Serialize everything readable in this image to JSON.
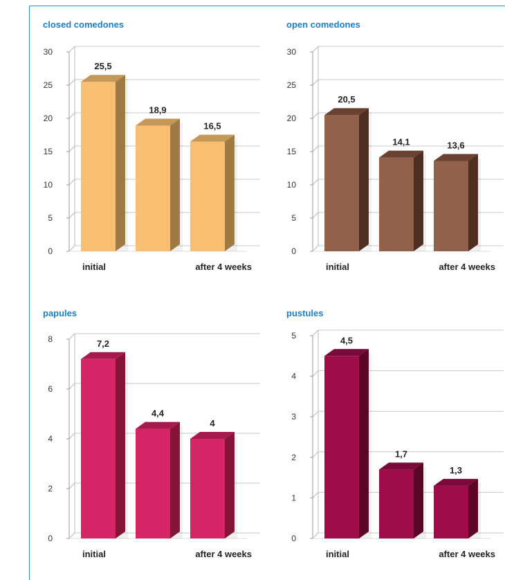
{
  "chart_data": [
    {
      "type": "bar",
      "title": "closed comedones",
      "categories": [
        "initial",
        "",
        "after 4 weeks"
      ],
      "values": [
        25.5,
        18.9,
        16.5
      ],
      "value_labels": [
        "25,5",
        "18,9",
        "16,5"
      ],
      "yticks": [
        "0",
        "5",
        "10",
        "15",
        "20",
        "25",
        "30"
      ],
      "ylim": [
        0,
        30
      ],
      "grid": true,
      "colors": {
        "front": "#f8bf73",
        "side": "#a07a44",
        "top": "#c49858"
      }
    },
    {
      "type": "bar",
      "title": "open comedones",
      "categories": [
        "initial",
        "",
        "after 4 weeks"
      ],
      "values": [
        20.5,
        14.1,
        13.6
      ],
      "value_labels": [
        "20,5",
        "14,1",
        "13,6"
      ],
      "yticks": [
        "0",
        "5",
        "10",
        "15",
        "20",
        "25",
        "30"
      ],
      "ylim": [
        0,
        30
      ],
      "grid": true,
      "colors": {
        "front": "#93614b",
        "side": "#4f2f22",
        "top": "#6a4232"
      }
    },
    {
      "type": "bar",
      "title": "papules",
      "categories": [
        "initial",
        "",
        "after 4 weeks"
      ],
      "values": [
        7.2,
        4.4,
        4
      ],
      "value_labels": [
        "7,2",
        "4,4",
        "4"
      ],
      "yticks": [
        "0",
        "2",
        "4",
        "6",
        "8"
      ],
      "ylim": [
        0,
        8
      ],
      "grid": true,
      "colors": {
        "front": "#d42567",
        "side": "#861338",
        "top": "#a71a4d"
      }
    },
    {
      "type": "bar",
      "title": "pustules",
      "categories": [
        "initial",
        "",
        "after 4 weeks"
      ],
      "values": [
        4.5,
        1.7,
        1.3
      ],
      "value_labels": [
        "4,5",
        "1,7",
        "1,3"
      ],
      "yticks": [
        "0",
        "1",
        "2",
        "3",
        "4",
        "5"
      ],
      "ylim": [
        0,
        5
      ],
      "grid": true,
      "colors": {
        "front": "#9e0d4a",
        "side": "#5c0627",
        "top": "#790a39"
      }
    }
  ]
}
